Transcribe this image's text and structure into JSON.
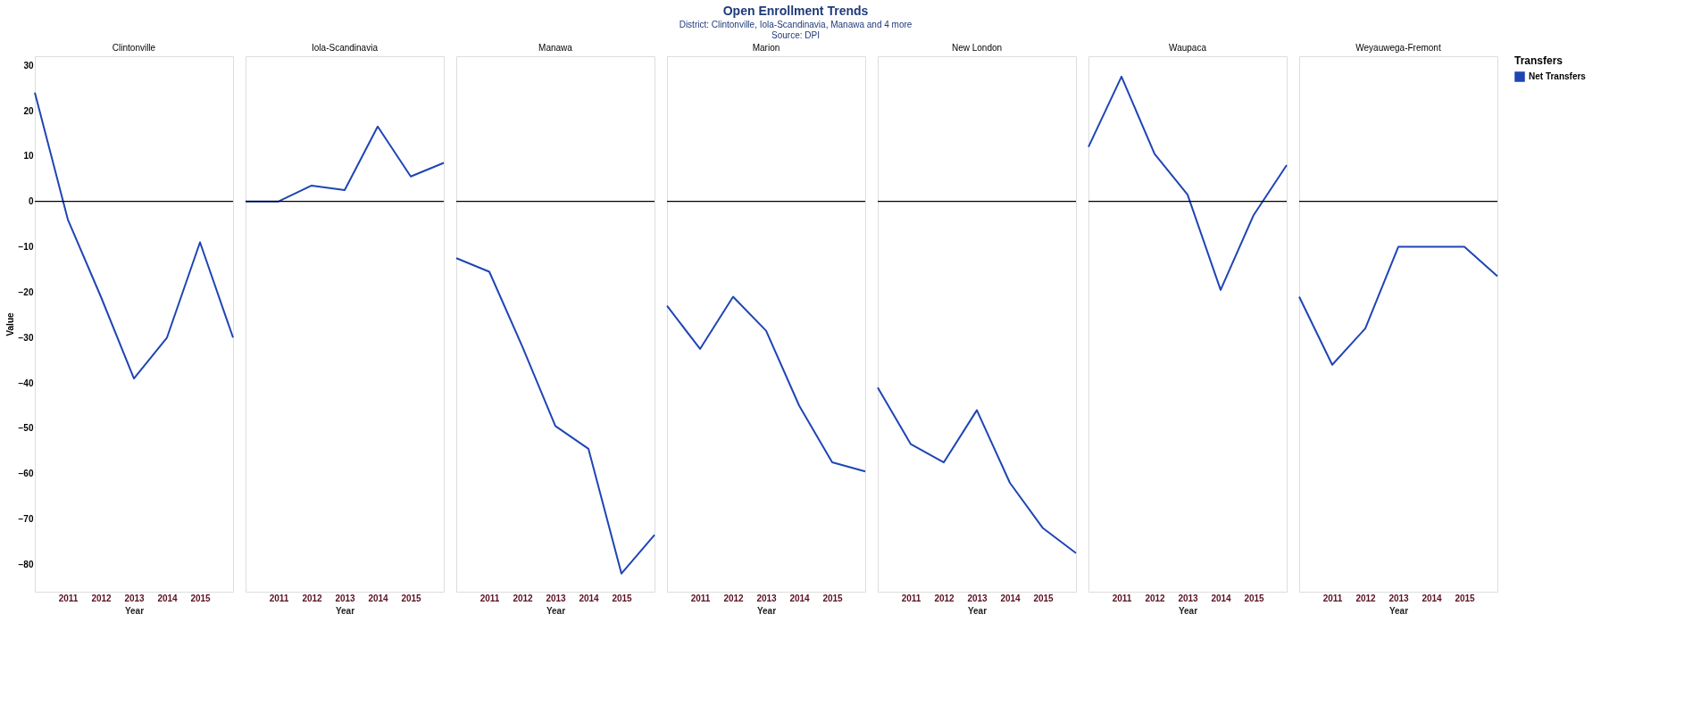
{
  "chart_data": [
    {
      "type": "other",
      "title": "Open Enrollment Trends",
      "subtitle": "District: Clintonville, Iola-Scandinavia, Manawa and 4 more",
      "annotations": [
        "Source: DPI"
      ]
    },
    {
      "type": "line",
      "title": "Clintonville",
      "xlabel": "Year",
      "ylabel": "Value",
      "x": [
        2010,
        2011,
        2012,
        2013,
        2014,
        2015,
        2016
      ],
      "xlim": [
        2010,
        2016
      ],
      "xticks": [
        2011,
        2012,
        2013,
        2014,
        2015
      ],
      "ylim": [
        -86,
        32
      ],
      "yticks": [
        -80,
        -70,
        -60,
        -50,
        -40,
        -30,
        -20,
        -10,
        0,
        10,
        20,
        30
      ],
      "grid": false,
      "ref_lines": [
        {
          "axis": "y",
          "value": 0,
          "color": "#000000"
        }
      ],
      "series": [
        {
          "color": "#1f45b5",
          "values": [
            24,
            -4,
            -21,
            -39,
            -30,
            -9,
            -30
          ]
        }
      ]
    },
    {
      "type": "line",
      "title": "Iola-Scandinavia",
      "xlabel": "Year",
      "x": [
        2010,
        2011,
        2012,
        2013,
        2014,
        2015,
        2016
      ],
      "xlim": [
        2010,
        2016
      ],
      "xticks": [
        2011,
        2012,
        2013,
        2014,
        2015
      ],
      "ylim": [
        -86,
        32
      ],
      "yticks": [
        -80,
        -70,
        -60,
        -50,
        -40,
        -30,
        -20,
        -10,
        0,
        10,
        20,
        30
      ],
      "tick_labels": "x",
      "grid": false,
      "ref_lines": [
        {
          "axis": "y",
          "value": 0,
          "color": "#000000"
        }
      ],
      "series": [
        {
          "color": "#1f45b5",
          "values": [
            0,
            0,
            3.5,
            2.5,
            16.5,
            5.5,
            8.5
          ]
        }
      ]
    },
    {
      "type": "line",
      "title": "Manawa",
      "xlabel": "Year",
      "x": [
        2010,
        2011,
        2012,
        2013,
        2014,
        2015,
        2016
      ],
      "xlim": [
        2010,
        2016
      ],
      "xticks": [
        2011,
        2012,
        2013,
        2014,
        2015
      ],
      "ylim": [
        -86,
        32
      ],
      "yticks": [
        -80,
        -70,
        -60,
        -50,
        -40,
        -30,
        -20,
        -10,
        0,
        10,
        20,
        30
      ],
      "tick_labels": "x",
      "grid": false,
      "ref_lines": [
        {
          "axis": "y",
          "value": 0,
          "color": "#000000"
        }
      ],
      "series": [
        {
          "color": "#1f45b5",
          "values": [
            -12.5,
            -15.5,
            -32,
            -49.5,
            -54.5,
            -82,
            -73.5
          ]
        }
      ]
    },
    {
      "type": "line",
      "title": "Marion",
      "xlabel": "Year",
      "x": [
        2010,
        2011,
        2012,
        2013,
        2014,
        2015,
        2016
      ],
      "xlim": [
        2010,
        2016
      ],
      "xticks": [
        2011,
        2012,
        2013,
        2014,
        2015
      ],
      "ylim": [
        -86,
        32
      ],
      "yticks": [
        -80,
        -70,
        -60,
        -50,
        -40,
        -30,
        -20,
        -10,
        0,
        10,
        20,
        30
      ],
      "tick_labels": "x",
      "grid": false,
      "ref_lines": [
        {
          "axis": "y",
          "value": 0,
          "color": "#000000"
        }
      ],
      "series": [
        {
          "color": "#1f45b5",
          "values": [
            -23,
            -32.5,
            -21,
            -28.5,
            -45,
            -57.5,
            -59.5
          ]
        }
      ]
    },
    {
      "type": "line",
      "title": "New London",
      "xlabel": "Year",
      "x": [
        2010,
        2011,
        2012,
        2013,
        2014,
        2015,
        2016
      ],
      "xlim": [
        2010,
        2016
      ],
      "xticks": [
        2011,
        2012,
        2013,
        2014,
        2015
      ],
      "ylim": [
        -86,
        32
      ],
      "yticks": [
        -80,
        -70,
        -60,
        -50,
        -40,
        -30,
        -20,
        -10,
        0,
        10,
        20,
        30
      ],
      "tick_labels": "x",
      "grid": false,
      "ref_lines": [
        {
          "axis": "y",
          "value": 0,
          "color": "#000000"
        }
      ],
      "series": [
        {
          "color": "#1f45b5",
          "values": [
            -41,
            -53.5,
            -57.5,
            -46,
            -62,
            -72,
            -77.5
          ]
        }
      ]
    },
    {
      "type": "line",
      "title": "Waupaca",
      "xlabel": "Year",
      "x": [
        2010,
        2011,
        2012,
        2013,
        2014,
        2015,
        2016
      ],
      "xlim": [
        2010,
        2016
      ],
      "xticks": [
        2011,
        2012,
        2013,
        2014,
        2015
      ],
      "ylim": [
        -86,
        32
      ],
      "yticks": [
        -80,
        -70,
        -60,
        -50,
        -40,
        -30,
        -20,
        -10,
        0,
        10,
        20,
        30
      ],
      "tick_labels": "x",
      "grid": false,
      "ref_lines": [
        {
          "axis": "y",
          "value": 0,
          "color": "#000000"
        }
      ],
      "series": [
        {
          "color": "#1f45b5",
          "values": [
            12,
            27.5,
            10.5,
            1.5,
            -19.5,
            -3,
            8
          ]
        }
      ]
    },
    {
      "type": "line",
      "title": "Weyauwega-Fremont",
      "xlabel": "Year",
      "x": [
        2010,
        2011,
        2012,
        2013,
        2014,
        2015,
        2016
      ],
      "xlim": [
        2010,
        2016
      ],
      "xticks": [
        2011,
        2012,
        2013,
        2014,
        2015
      ],
      "ylim": [
        -86,
        32
      ],
      "yticks": [
        -80,
        -70,
        -60,
        -50,
        -40,
        -30,
        -20,
        -10,
        0,
        10,
        20,
        30
      ],
      "tick_labels": "x",
      "grid": false,
      "legend": "right",
      "legend_title": "Transfers",
      "ref_lines": [
        {
          "axis": "y",
          "value": 0,
          "color": "#000000"
        }
      ],
      "series": [
        {
          "name": "Net Transfers",
          "color": "#1f45b5",
          "values": [
            -21,
            -36,
            -28,
            -10,
            -10,
            -10,
            -16.5
          ]
        }
      ]
    }
  ]
}
